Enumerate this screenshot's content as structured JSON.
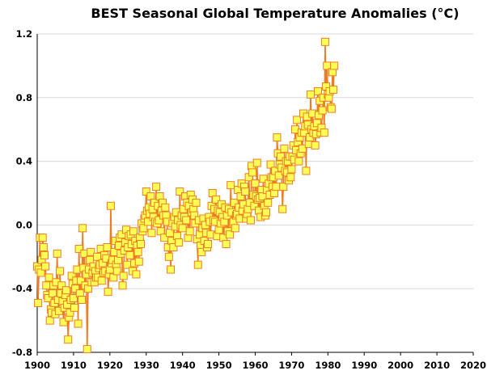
{
  "chart_data": {
    "type": "line",
    "title": "BEST Seasonal Global Temperature Anomalies (°C)",
    "xlabel": "",
    "ylabel": "",
    "xlim": [
      1900,
      2020
    ],
    "ylim": [
      -0.8,
      1.2
    ],
    "x_ticks": [
      "1900",
      "1910",
      "1920",
      "1930",
      "1940",
      "1950",
      "1960",
      "1970",
      "1980",
      "1990",
      "2000",
      "2010",
      "2020"
    ],
    "y_ticks": [
      "1.2",
      "0.8",
      "0.4",
      "0.0",
      "-0.4",
      "-0.8"
    ],
    "grid": "horizontal",
    "legend": "none",
    "line_color": "#f07c22",
    "marker_fill": "#ffff55",
    "marker_edge": "#f07c22",
    "season_step": 0.25,
    "x_start": 1900,
    "values": [
      -0.26,
      -0.49,
      -0.28,
      -0.08,
      -0.3,
      -0.22,
      -0.08,
      -0.14,
      -0.19,
      -0.26,
      -0.38,
      -0.44,
      -0.46,
      -0.33,
      -0.6,
      -0.53,
      -0.55,
      -0.43,
      -0.38,
      -0.49,
      -0.56,
      -0.36,
      -0.18,
      -0.47,
      -0.54,
      -0.29,
      -0.43,
      -0.38,
      -0.48,
      -0.61,
      -0.52,
      -0.44,
      -0.41,
      -0.5,
      -0.72,
      -0.58,
      -0.55,
      -0.47,
      -0.32,
      -0.37,
      -0.46,
      -0.52,
      -0.4,
      -0.35,
      -0.28,
      -0.62,
      -0.15,
      -0.43,
      -0.35,
      -0.47,
      -0.02,
      -0.27,
      -0.18,
      -0.38,
      -0.31,
      -0.78,
      -0.4,
      -0.28,
      -0.22,
      -0.17,
      -0.36,
      -0.3,
      -0.26,
      -0.36,
      -0.29,
      -0.33,
      -0.2,
      -0.33,
      -0.27,
      -0.25,
      -0.15,
      -0.35,
      -0.24,
      -0.3,
      -0.19,
      -0.29,
      -0.21,
      -0.14,
      -0.42,
      -0.31,
      -0.28,
      0.12,
      -0.24,
      -0.22,
      -0.33,
      -0.17,
      -0.1,
      -0.25,
      -0.29,
      -0.22,
      -0.13,
      -0.08,
      -0.18,
      -0.06,
      -0.38,
      -0.32,
      -0.16,
      -0.11,
      -0.03,
      -0.25,
      -0.14,
      -0.07,
      -0.19,
      -0.06,
      -0.12,
      -0.29,
      -0.04,
      -0.24,
      -0.1,
      -0.31,
      -0.13,
      -0.17,
      -0.23,
      -0.08,
      -0.12,
      0.01,
      -0.04,
      -0.02,
      0.04,
      0.06,
      0.21,
      0.09,
      0.02,
      0.11,
      0.07,
      0.18,
      -0.05,
      0.1,
      0.05,
      0.14,
      0.02,
      0.24,
      0.01,
      0.12,
      0.03,
      0.18,
      -0.04,
      0.09,
      0.14,
      0.06,
      -0.08,
      0.11,
      0.06,
      0.02,
      -0.14,
      -0.2,
      -0.05,
      -0.28,
      -0.1,
      0.01,
      -0.14,
      0.05,
      -0.01,
      0.08,
      -0.07,
      0.03,
      -0.11,
      0.21,
      0.0,
      0.06,
      -0.02,
      0.1,
      0.05,
      0.18,
      0.03,
      0.14,
      -0.08,
      0.12,
      -0.04,
      0.19,
      0.08,
      0.16,
      0.1,
      0.06,
      0.01,
      0.14,
      -0.09,
      -0.25,
      0.03,
      -0.06,
      -0.13,
      -0.17,
      -0.02,
      0.04,
      -0.1,
      0.0,
      -0.05,
      -0.14,
      -0.12,
      0.05,
      0.02,
      -0.06,
      0.12,
      0.2,
      0.03,
      0.1,
      0.02,
      0.16,
      -0.07,
      0.09,
      -0.03,
      0.08,
      0.01,
      0.13,
      0.05,
      -0.08,
      0.02,
      0.11,
      -0.12,
      0.06,
      -0.04,
      0.1,
      -0.06,
      0.25,
      0.08,
      0.01,
      0.02,
      0.14,
      -0.02,
      0.06,
      0.07,
      0.22,
      0.11,
      0.04,
      0.18,
      0.26,
      0.09,
      0.13,
      0.24,
      0.21,
      0.04,
      0.07,
      0.1,
      0.3,
      0.14,
      0.03,
      0.37,
      0.33,
      0.19,
      0.12,
      0.26,
      0.18,
      0.39,
      0.16,
      0.09,
      0.17,
      0.05,
      0.22,
      0.18,
      0.29,
      0.12,
      0.06,
      0.08,
      0.22,
      0.14,
      0.26,
      0.19,
      0.38,
      0.3,
      0.24,
      0.3,
      0.2,
      0.34,
      0.24,
      0.55,
      0.45,
      0.31,
      0.38,
      0.43,
      0.36,
      0.1,
      0.24,
      0.48,
      0.34,
      0.4,
      0.33,
      0.4,
      0.28,
      0.43,
      0.3,
      0.35,
      0.43,
      0.5,
      0.41,
      0.6,
      0.47,
      0.66,
      0.52,
      0.4,
      0.55,
      0.45,
      0.58,
      0.48,
      0.7,
      0.58,
      0.62,
      0.34,
      0.68,
      0.63,
      0.51,
      0.55,
      0.82,
      0.6,
      0.7,
      0.58,
      0.62,
      0.5,
      0.57,
      0.64,
      0.84,
      0.69,
      0.78,
      0.58,
      0.61,
      0.72,
      0.8,
      0.58,
      1.15,
      0.87,
      1.0,
      0.82,
      0.8,
      0.84,
      0.74,
      0.73,
      0.96,
      0.85,
      1.0
    ]
  }
}
